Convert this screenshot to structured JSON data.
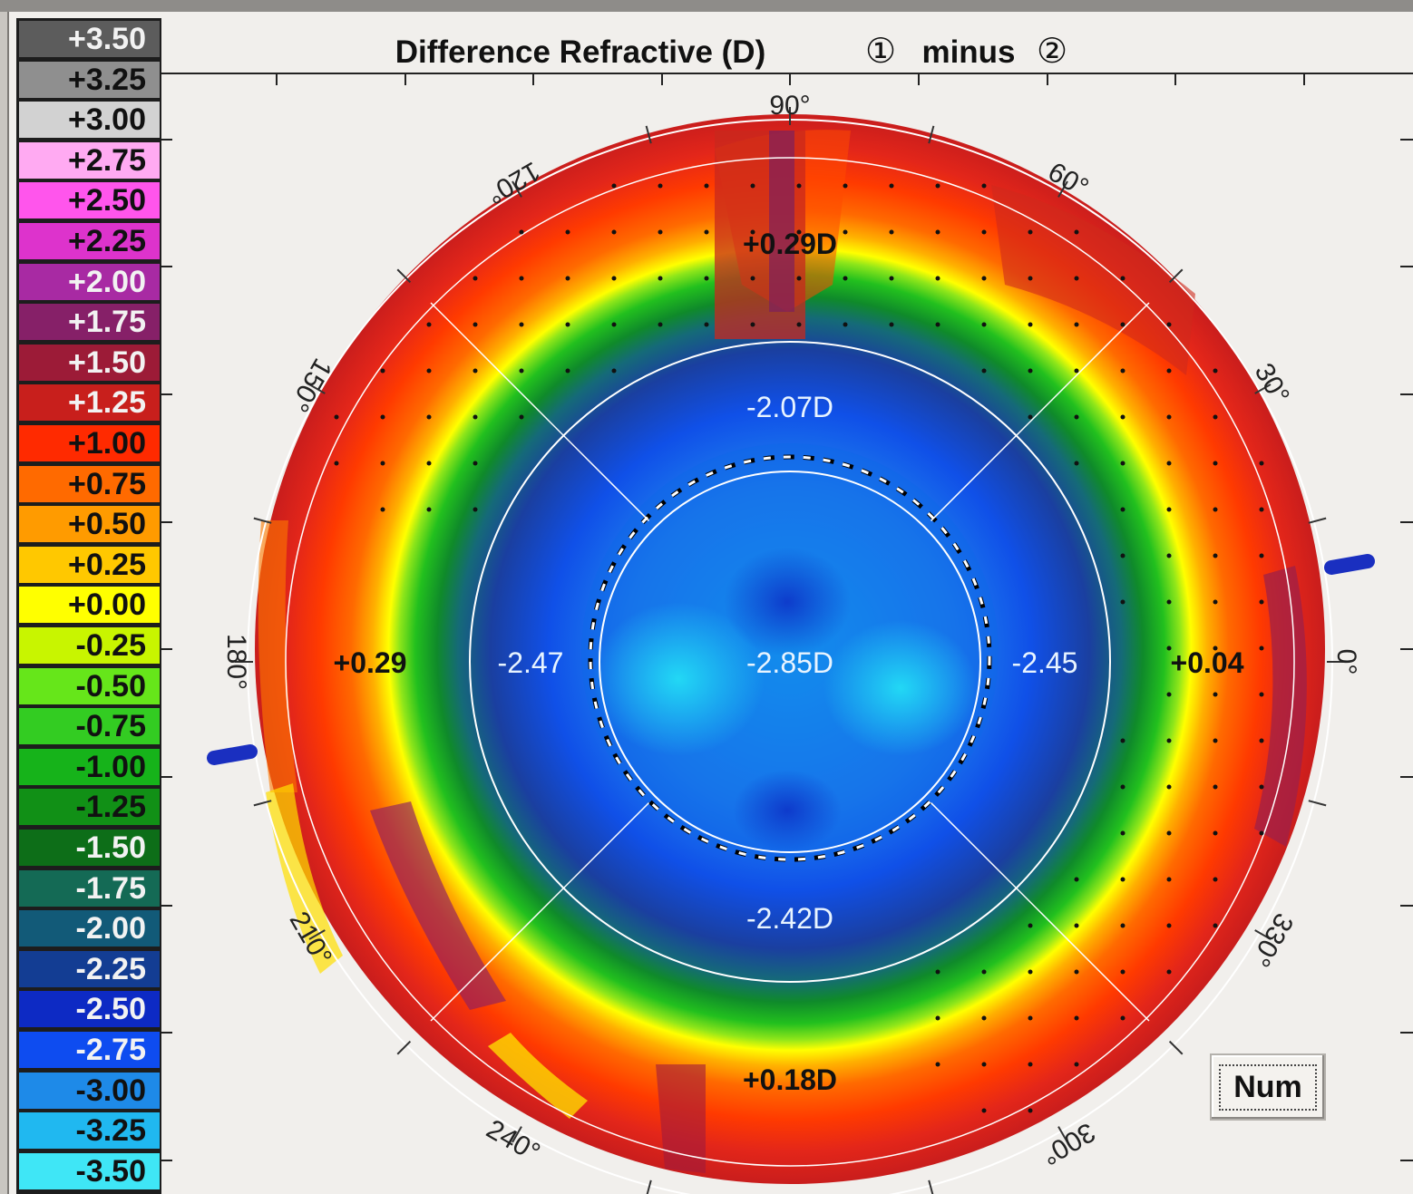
{
  "title": {
    "text": "Difference Refractive (D)",
    "circle_one": "①",
    "minus": "minus",
    "circle_two": "②"
  },
  "legend": [
    {
      "label": "+3.50",
      "color": "#5c5c5c",
      "text": "#f2f2f2"
    },
    {
      "label": "+3.25",
      "color": "#8f8f8f",
      "text": "#111111"
    },
    {
      "label": "+3.00",
      "color": "#d2d2d2",
      "text": "#111111"
    },
    {
      "label": "+2.75",
      "color": "#ffaaf2",
      "text": "#111111"
    },
    {
      "label": "+2.50",
      "color": "#ff55ec",
      "text": "#111111"
    },
    {
      "label": "+2.25",
      "color": "#dd33cc",
      "text": "#111111"
    },
    {
      "label": "+2.00",
      "color": "#a82aa3",
      "text": "#f2f2f2"
    },
    {
      "label": "+1.75",
      "color": "#862068",
      "text": "#f2f2f2"
    },
    {
      "label": "+1.50",
      "color": "#9c1b37",
      "text": "#f2f2f2"
    },
    {
      "label": "+1.25",
      "color": "#c81f1c",
      "text": "#f2f2f2"
    },
    {
      "label": "+1.00",
      "color": "#ff2a00",
      "text": "#111111"
    },
    {
      "label": "+0.75",
      "color": "#ff6a00",
      "text": "#111111"
    },
    {
      "label": "+0.50",
      "color": "#ff9b00",
      "text": "#111111"
    },
    {
      "label": "+0.25",
      "color": "#ffc800",
      "text": "#111111"
    },
    {
      "label": "+0.00",
      "color": "#ffff00",
      "text": "#111111"
    },
    {
      "label": "-0.25",
      "color": "#c8f500",
      "text": "#111111"
    },
    {
      "label": "-0.50",
      "color": "#66e61a",
      "text": "#111111"
    },
    {
      "label": "-0.75",
      "color": "#33cc22",
      "text": "#111111"
    },
    {
      "label": "-1.00",
      "color": "#16b31a",
      "text": "#111111"
    },
    {
      "label": "-1.25",
      "color": "#119016",
      "text": "#111111"
    },
    {
      "label": "-1.50",
      "color": "#0d6e18",
      "text": "#f2f2f2"
    },
    {
      "label": "-1.75",
      "color": "#146a55",
      "text": "#f2f2f2"
    },
    {
      "label": "-2.00",
      "color": "#125a78",
      "text": "#f2f2f2"
    },
    {
      "label": "-2.25",
      "color": "#133d93",
      "text": "#f2f2f2"
    },
    {
      "label": "-2.50",
      "color": "#0d2ac4",
      "text": "#f2f2f2"
    },
    {
      "label": "-2.75",
      "color": "#0e4cf0",
      "text": "#f2f2f2"
    },
    {
      "label": "-3.00",
      "color": "#1e8ae8",
      "text": "#111111"
    },
    {
      "label": "-3.25",
      "color": "#20b8f0",
      "text": "#111111"
    },
    {
      "label": "-3.50",
      "color": "#3fe6f6",
      "text": "#111111"
    }
  ],
  "angle_labels": [
    {
      "text": "90°",
      "angle": 90
    },
    {
      "text": "120°",
      "angle": 120
    },
    {
      "text": "60°",
      "angle": 60
    },
    {
      "text": "150°",
      "angle": 150
    },
    {
      "text": "30°",
      "angle": 30
    },
    {
      "text": "180°",
      "angle": 180
    },
    {
      "text": "0°",
      "angle": 0
    },
    {
      "text": "210°",
      "angle": 210
    },
    {
      "text": "330°",
      "angle": 330
    },
    {
      "text": "240°",
      "angle": 240
    },
    {
      "text": "300°",
      "angle": 300
    }
  ],
  "map_values": {
    "top": "+0.29D",
    "upper_inner": "-2.07D",
    "left_outer": "+0.29",
    "left_inner": "-2.47",
    "center": "-2.85D",
    "right_inner": "-2.45",
    "right_outer": "+0.04",
    "lower_inner": "-2.42D",
    "bottom": "+0.18D"
  },
  "num_button": "Num"
}
